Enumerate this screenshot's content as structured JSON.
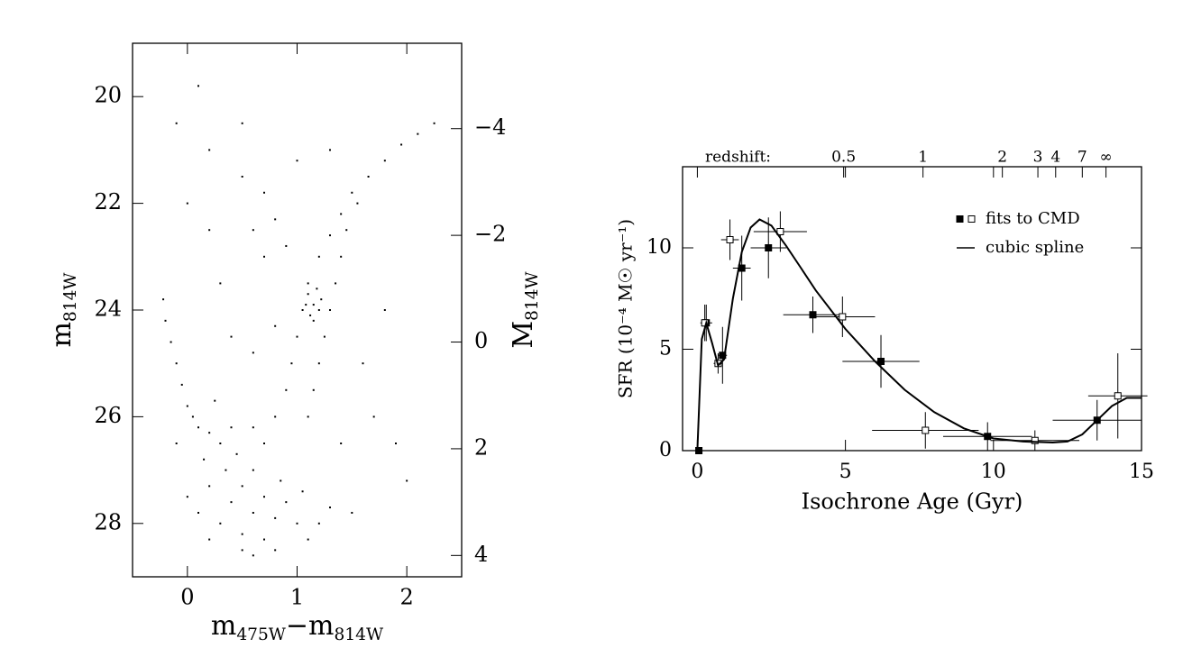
{
  "chart_data": [
    {
      "type": "scatter",
      "x_label": [
        "m",
        "475W",
        "−m",
        "814W"
      ],
      "y_label": [
        "m",
        "814W"
      ],
      "y2_label": [
        "M",
        "814W"
      ],
      "xlim": [
        -0.5,
        2.5
      ],
      "ylim": [
        29,
        19
      ],
      "y2lim": [
        4.4,
        -5.6
      ],
      "xticks": [
        0,
        1,
        2
      ],
      "yticks": [
        20,
        22,
        24,
        26,
        28
      ],
      "y2ticks": [
        {
          "value": -4,
          "label": "−4"
        },
        {
          "value": -2,
          "label": "−2"
        },
        0,
        2,
        4
      ],
      "color": "#000000",
      "x": [
        0.3,
        0.5,
        0.7,
        0.4,
        0.6,
        0.8,
        1.0,
        1.2,
        0.2,
        0.35,
        0.5,
        0.7,
        0.9,
        0.15,
        0.3,
        0.1,
        0.0,
        -0.05,
        -0.1,
        -0.15,
        -0.2,
        -0.22,
        0.05,
        0.2,
        0.45,
        0.6,
        0.85,
        1.05,
        1.3,
        1.5,
        0.5,
        0.8,
        0.2,
        0.0,
        0.1,
        1.1,
        0.6,
        -0.1,
        0.25,
        0.4,
        0.6,
        0.8,
        0.9,
        0.95,
        1.0,
        1.05,
        1.1,
        1.2,
        1.3,
        1.4,
        1.5,
        1.65,
        1.8,
        1.95,
        2.1,
        2.25,
        1.25,
        1.3,
        1.35,
        1.4,
        1.45,
        1.55,
        1.2,
        1.15,
        1.1,
        0.7,
        1.1,
        1.15,
        1.2,
        1.12,
        1.18,
        1.08,
        1.22,
        1.15,
        0.6,
        0.7,
        0.8,
        0.9,
        0.5,
        0.3,
        0.2,
        0.7,
        1.0,
        0.4,
        0.6,
        0.8,
        0.2,
        -0.1,
        0.1,
        1.6,
        1.9,
        2.0,
        1.7,
        1.4,
        1.8,
        0.0,
        0.5,
        1.3
      ],
      "values": [
        28.0,
        28.2,
        28.3,
        27.6,
        27.8,
        27.9,
        28.0,
        28.0,
        27.3,
        27.0,
        27.3,
        27.5,
        27.6,
        26.8,
        26.5,
        26.2,
        25.8,
        25.4,
        25.0,
        24.6,
        24.2,
        23.8,
        26.0,
        26.3,
        26.7,
        27.0,
        27.2,
        27.4,
        27.7,
        27.8,
        28.5,
        28.5,
        28.3,
        27.5,
        27.8,
        28.3,
        28.6,
        26.5,
        25.7,
        26.2,
        26.2,
        26.0,
        25.5,
        25.0,
        24.5,
        24.0,
        23.5,
        23.0,
        22.6,
        22.2,
        21.8,
        21.5,
        21.2,
        20.9,
        20.7,
        20.5,
        24.5,
        24.0,
        23.5,
        23.0,
        22.5,
        22.0,
        25.0,
        25.5,
        26.0,
        26.5,
        23.7,
        23.9,
        24.0,
        24.1,
        23.6,
        23.9,
        23.8,
        24.2,
        22.5,
        23.0,
        22.3,
        22.8,
        21.5,
        23.5,
        21.0,
        21.8,
        21.2,
        24.5,
        24.8,
        24.3,
        22.5,
        20.5,
        19.8,
        25.0,
        26.5,
        27.2,
        26.0,
        26.5,
        24.0,
        22.0,
        20.5,
        21.0
      ]
    },
    {
      "type": "line",
      "x_label": "Isochrone Age (Gyr)",
      "y_label": "SFR (10⁻⁴ M☉ yr⁻¹)",
      "x2_label": "redshift:",
      "xlim": [
        -0.5,
        15
      ],
      "ylim": [
        0,
        14
      ],
      "xticks": [
        0,
        5,
        10,
        15
      ],
      "yticks": [
        0,
        5,
        10
      ],
      "x2ticks": [
        {
          "value": 4.94,
          "label": "0.5"
        },
        {
          "value": 7.62,
          "label": "1"
        },
        {
          "value": 10.3,
          "label": "2"
        },
        {
          "value": 11.5,
          "label": "3"
        },
        {
          "value": 12.1,
          "label": "4"
        },
        {
          "value": 13.0,
          "label": "7"
        },
        {
          "value": 13.8,
          "label": "∞"
        }
      ],
      "legend": "upper right",
      "series": [
        {
          "name": "fits to CMD",
          "color": "#000000",
          "x": [
            0.05,
            0.3,
            0.85,
            1.5,
            2.4,
            3.9,
            6.2,
            9.8,
            13.5,
            0.25,
            0.7,
            1.1,
            2.8,
            4.9,
            7.7,
            11.4,
            14.2
          ],
          "values": [
            0,
            6.3,
            4.7,
            9.0,
            10.0,
            6.7,
            4.4,
            0.7,
            1.5,
            6.3,
            4.3,
            10.4,
            10.8,
            6.6,
            1.0,
            0.5,
            2.7
          ],
          "xerr": [
            0.05,
            0.2,
            0.15,
            0.3,
            0.6,
            1.0,
            1.3,
            1.5,
            1.5,
            0.1,
            0.15,
            0.3,
            0.9,
            1.1,
            1.8,
            1.5,
            1.0
          ],
          "yerr": [
            0,
            0.9,
            1.4,
            1.6,
            1.5,
            0.9,
            1.3,
            0.7,
            1.0,
            0.9,
            0.5,
            1.0,
            1.0,
            1.0,
            0.9,
            0.5,
            2.1
          ],
          "open": [
            false,
            false,
            false,
            false,
            false,
            false,
            false,
            false,
            false,
            true,
            true,
            true,
            true,
            true,
            true,
            true,
            true
          ]
        },
        {
          "name": "cubic spline",
          "color": "#000000",
          "x": [
            0,
            0.15,
            0.3,
            0.5,
            0.7,
            0.9,
            1.2,
            1.5,
            1.8,
            2.1,
            2.5,
            3,
            3.5,
            4,
            5,
            6,
            7,
            8,
            9,
            10,
            11,
            12,
            12.5,
            13,
            13.5,
            14,
            14.5,
            15
          ],
          "values": [
            0,
            5.5,
            6.3,
            5.3,
            4.2,
            4.5,
            7.5,
            9.8,
            11.0,
            11.4,
            11.1,
            10.1,
            9.0,
            7.9,
            6.0,
            4.4,
            3.0,
            1.9,
            1.1,
            0.6,
            0.45,
            0.4,
            0.45,
            0.8,
            1.5,
            2.2,
            2.6,
            2.6
          ]
        }
      ]
    }
  ]
}
